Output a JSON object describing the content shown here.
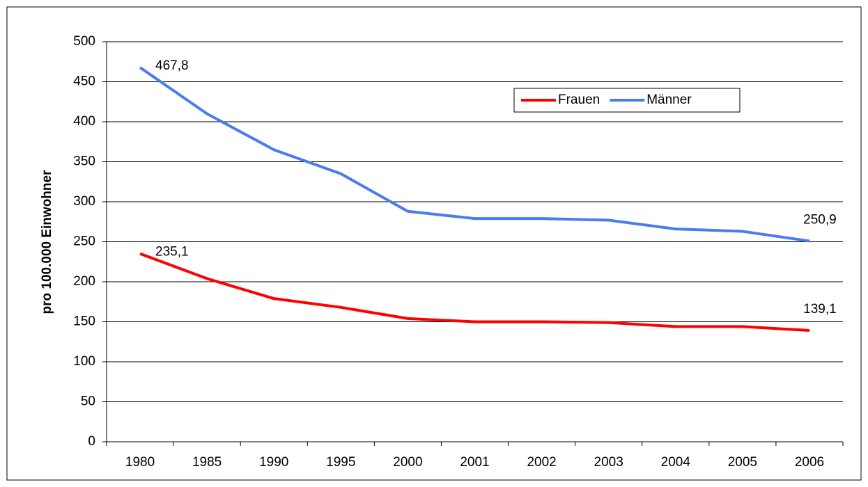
{
  "chart_data": {
    "type": "line",
    "y_label": "pro 100.000 Einwohner",
    "categories": [
      "1980",
      "1985",
      "1990",
      "1995",
      "2000",
      "2001",
      "2002",
      "2003",
      "2004",
      "2005",
      "2006"
    ],
    "series": [
      {
        "name": "Frauen",
        "color": "#ff0000",
        "values": [
          235.1,
          204,
          179,
          168,
          154,
          150,
          150,
          149,
          144,
          144,
          139.1
        ],
        "value_labels": [
          "235,1",
          null,
          null,
          null,
          null,
          null,
          null,
          null,
          null,
          null,
          "139,1"
        ]
      },
      {
        "name": "Männer",
        "color": "#4a7cf0",
        "values": [
          467.8,
          410,
          365,
          335,
          288,
          279,
          279,
          277,
          266,
          263,
          250.9
        ],
        "value_labels": [
          "467,8",
          null,
          null,
          null,
          null,
          null,
          null,
          null,
          null,
          null,
          "250,9"
        ]
      }
    ],
    "ylim": [
      0,
      500
    ],
    "yticks": [
      0,
      50,
      100,
      150,
      200,
      250,
      300,
      350,
      400,
      450,
      500
    ],
    "grid": true,
    "legend": "top-right"
  }
}
